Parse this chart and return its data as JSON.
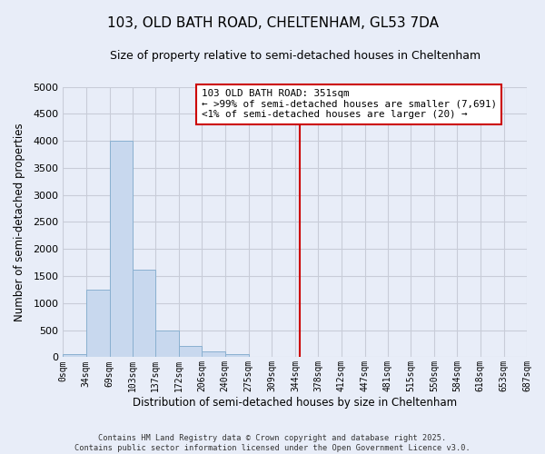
{
  "title": "103, OLD BATH ROAD, CHELTENHAM, GL53 7DA",
  "subtitle": "Size of property relative to semi-detached houses in Cheltenham",
  "xlabel": "Distribution of semi-detached houses by size in Cheltenham",
  "ylabel": "Number of semi-detached properties",
  "bin_edges": [
    0,
    34,
    69,
    103,
    137,
    172,
    206,
    240,
    275,
    309,
    344,
    378,
    412,
    447,
    481,
    515,
    550,
    584,
    618,
    653,
    687
  ],
  "bar_heights": [
    50,
    1250,
    4000,
    1620,
    490,
    215,
    110,
    50,
    10,
    5,
    0,
    0,
    0,
    0,
    0,
    0,
    0,
    0,
    0,
    0
  ],
  "bar_color": "#c8d8ee",
  "bar_edge_color": "#8ab0d0",
  "property_size": 351,
  "vline_color": "#cc0000",
  "annotation_title": "103 OLD BATH ROAD: 351sqm",
  "annotation_line1": "← >99% of semi-detached houses are smaller (7,691)",
  "annotation_line2": "<1% of semi-detached houses are larger (20) →",
  "annotation_box_color": "#ffffff",
  "annotation_box_edge_color": "#cc0000",
  "ylim": [
    0,
    5000
  ],
  "tick_labels": [
    "0sqm",
    "34sqm",
    "69sqm",
    "103sqm",
    "137sqm",
    "172sqm",
    "206sqm",
    "240sqm",
    "275sqm",
    "309sqm",
    "344sqm",
    "378sqm",
    "412sqm",
    "447sqm",
    "481sqm",
    "515sqm",
    "550sqm",
    "584sqm",
    "618sqm",
    "653sqm",
    "687sqm"
  ],
  "footer_line1": "Contains HM Land Registry data © Crown copyright and database right 2025.",
  "footer_line2": "Contains public sector information licensed under the Open Government Licence v3.0.",
  "background_color": "#e8edf8",
  "plot_bg_color": "#e8edf8",
  "grid_color": "#c8ccd8",
  "title_fontsize": 11,
  "subtitle_fontsize": 9
}
